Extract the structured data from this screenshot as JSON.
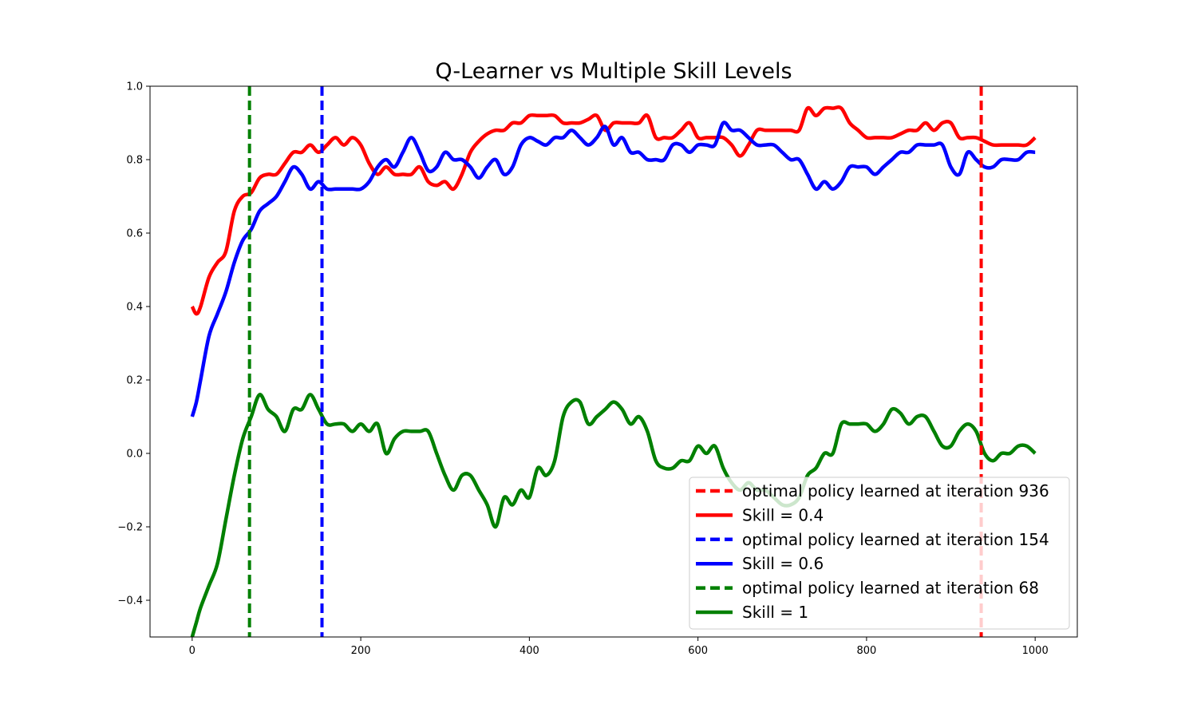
{
  "chart_data": {
    "type": "line",
    "title": "Q-Learner vs Multiple Skill Levels",
    "xlabel": "",
    "ylabel": "",
    "xlim": [
      -50,
      1050
    ],
    "ylim": [
      -0.5,
      1.0
    ],
    "xticks": [
      0,
      200,
      400,
      600,
      800,
      1000
    ],
    "xtick_labels": [
      "0",
      "200",
      "400",
      "600",
      "800",
      "1000"
    ],
    "yticks": [
      -0.4,
      -0.2,
      0.0,
      0.2,
      0.4,
      0.6,
      0.8,
      1.0
    ],
    "ytick_labels": [
      "−0.4",
      "−0.2",
      "0.0",
      "0.2",
      "0.4",
      "0.6",
      "0.8",
      "1.0"
    ],
    "grid": false,
    "legend_position": "lower-right",
    "legend": [
      {
        "label": "optimal policy learned at iteration 936",
        "color": "#ff0000",
        "style": "dashed"
      },
      {
        "label": "Skill = 0.4",
        "color": "#ff0000",
        "style": "solid"
      },
      {
        "label": "optimal policy learned at iteration 154",
        "color": "#0000ff",
        "style": "dashed"
      },
      {
        "label": "Skill = 0.6",
        "color": "#0000ff",
        "style": "solid"
      },
      {
        "label": "optimal policy learned at iteration 68",
        "color": "#008000",
        "style": "dashed"
      },
      {
        "label": "Skill = 1",
        "color": "#008000",
        "style": "solid"
      }
    ],
    "vlines": [
      {
        "x": 68,
        "color": "#008000"
      },
      {
        "x": 154,
        "color": "#0000ff"
      },
      {
        "x": 936,
        "color": "#ff0000"
      }
    ],
    "series": [
      {
        "name": "Skill = 0.4",
        "color": "#ff0000",
        "x": [
          0,
          5,
          10,
          20,
          30,
          40,
          50,
          60,
          70,
          80,
          90,
          100,
          110,
          120,
          130,
          140,
          150,
          160,
          170,
          180,
          190,
          200,
          210,
          220,
          230,
          240,
          250,
          260,
          270,
          280,
          290,
          300,
          310,
          320,
          330,
          340,
          350,
          360,
          370,
          380,
          390,
          400,
          410,
          420,
          430,
          440,
          450,
          460,
          470,
          480,
          490,
          500,
          510,
          520,
          530,
          540,
          550,
          560,
          570,
          580,
          590,
          600,
          610,
          620,
          630,
          640,
          650,
          660,
          670,
          680,
          690,
          700,
          710,
          720,
          730,
          740,
          750,
          760,
          770,
          780,
          790,
          800,
          810,
          820,
          830,
          840,
          850,
          860,
          870,
          880,
          890,
          900,
          910,
          920,
          930,
          940,
          950,
          960,
          970,
          980,
          990,
          1000
        ],
        "values": [
          0.4,
          0.38,
          0.4,
          0.48,
          0.52,
          0.55,
          0.66,
          0.7,
          0.71,
          0.75,
          0.76,
          0.76,
          0.79,
          0.82,
          0.82,
          0.84,
          0.82,
          0.84,
          0.86,
          0.84,
          0.86,
          0.84,
          0.79,
          0.76,
          0.78,
          0.76,
          0.76,
          0.76,
          0.78,
          0.74,
          0.73,
          0.74,
          0.72,
          0.76,
          0.82,
          0.85,
          0.87,
          0.88,
          0.88,
          0.9,
          0.9,
          0.92,
          0.92,
          0.92,
          0.92,
          0.9,
          0.9,
          0.9,
          0.91,
          0.92,
          0.88,
          0.9,
          0.9,
          0.9,
          0.9,
          0.92,
          0.86,
          0.86,
          0.86,
          0.88,
          0.9,
          0.86,
          0.86,
          0.86,
          0.86,
          0.84,
          0.81,
          0.84,
          0.88,
          0.88,
          0.88,
          0.88,
          0.88,
          0.88,
          0.94,
          0.92,
          0.94,
          0.94,
          0.94,
          0.9,
          0.88,
          0.86,
          0.86,
          0.86,
          0.86,
          0.87,
          0.88,
          0.88,
          0.9,
          0.88,
          0.9,
          0.9,
          0.86,
          0.86,
          0.86,
          0.85,
          0.84,
          0.84,
          0.84,
          0.84,
          0.84,
          0.86
        ]
      },
      {
        "name": "Skill = 0.6",
        "color": "#0000ff",
        "x": [
          0,
          5,
          10,
          20,
          30,
          40,
          50,
          60,
          70,
          80,
          90,
          100,
          110,
          120,
          130,
          140,
          150,
          160,
          170,
          180,
          190,
          200,
          210,
          220,
          230,
          240,
          250,
          260,
          270,
          280,
          290,
          300,
          310,
          320,
          330,
          340,
          350,
          360,
          370,
          380,
          390,
          400,
          410,
          420,
          430,
          440,
          450,
          460,
          470,
          480,
          490,
          500,
          510,
          520,
          530,
          540,
          550,
          560,
          570,
          580,
          590,
          600,
          610,
          620,
          630,
          640,
          650,
          660,
          670,
          680,
          690,
          700,
          710,
          720,
          730,
          740,
          750,
          760,
          770,
          780,
          790,
          800,
          810,
          820,
          830,
          840,
          850,
          860,
          870,
          880,
          890,
          900,
          910,
          920,
          930,
          940,
          950,
          960,
          970,
          980,
          990,
          1000
        ],
        "values": [
          0.1,
          0.14,
          0.2,
          0.32,
          0.38,
          0.44,
          0.52,
          0.58,
          0.61,
          0.66,
          0.68,
          0.7,
          0.74,
          0.78,
          0.76,
          0.72,
          0.74,
          0.72,
          0.72,
          0.72,
          0.72,
          0.72,
          0.74,
          0.78,
          0.8,
          0.78,
          0.82,
          0.86,
          0.82,
          0.77,
          0.78,
          0.82,
          0.8,
          0.8,
          0.78,
          0.75,
          0.78,
          0.8,
          0.76,
          0.78,
          0.84,
          0.86,
          0.85,
          0.84,
          0.86,
          0.86,
          0.88,
          0.86,
          0.84,
          0.86,
          0.89,
          0.84,
          0.86,
          0.82,
          0.82,
          0.8,
          0.8,
          0.8,
          0.84,
          0.84,
          0.82,
          0.84,
          0.84,
          0.84,
          0.9,
          0.88,
          0.88,
          0.86,
          0.84,
          0.84,
          0.84,
          0.82,
          0.8,
          0.8,
          0.76,
          0.72,
          0.74,
          0.72,
          0.74,
          0.78,
          0.78,
          0.78,
          0.76,
          0.78,
          0.8,
          0.82,
          0.82,
          0.84,
          0.84,
          0.84,
          0.84,
          0.78,
          0.76,
          0.82,
          0.8,
          0.78,
          0.78,
          0.8,
          0.8,
          0.8,
          0.82,
          0.82
        ]
      },
      {
        "name": "Skill = 1",
        "color": "#008000",
        "x": [
          0,
          5,
          10,
          20,
          30,
          40,
          50,
          60,
          70,
          80,
          90,
          100,
          110,
          120,
          130,
          140,
          150,
          160,
          170,
          180,
          190,
          200,
          210,
          220,
          230,
          240,
          250,
          260,
          270,
          280,
          290,
          300,
          310,
          320,
          330,
          340,
          350,
          360,
          370,
          380,
          390,
          400,
          410,
          420,
          430,
          440,
          450,
          460,
          470,
          480,
          490,
          500,
          510,
          520,
          530,
          540,
          550,
          560,
          570,
          580,
          590,
          600,
          610,
          620,
          630,
          640,
          650,
          660,
          670,
          680,
          690,
          700,
          710,
          720,
          730,
          740,
          750,
          760,
          770,
          780,
          790,
          800,
          810,
          820,
          830,
          840,
          850,
          860,
          870,
          880,
          890,
          900,
          910,
          920,
          930,
          940,
          950,
          960,
          970,
          980,
          990,
          1000
        ],
        "values": [
          -0.5,
          -0.46,
          -0.42,
          -0.36,
          -0.3,
          -0.18,
          -0.06,
          0.04,
          0.1,
          0.16,
          0.12,
          0.1,
          0.06,
          0.12,
          0.12,
          0.16,
          0.12,
          0.08,
          0.08,
          0.08,
          0.06,
          0.08,
          0.06,
          0.08,
          0.0,
          0.04,
          0.06,
          0.06,
          0.06,
          0.06,
          0.0,
          -0.06,
          -0.1,
          -0.06,
          -0.06,
          -0.1,
          -0.14,
          -0.2,
          -0.12,
          -0.14,
          -0.1,
          -0.12,
          -0.04,
          -0.06,
          -0.02,
          0.1,
          0.14,
          0.14,
          0.08,
          0.1,
          0.12,
          0.14,
          0.12,
          0.08,
          0.1,
          0.06,
          -0.02,
          -0.04,
          -0.04,
          -0.02,
          -0.02,
          0.02,
          0.0,
          0.02,
          -0.04,
          -0.08,
          -0.1,
          -0.08,
          -0.1,
          -0.1,
          -0.12,
          -0.14,
          -0.14,
          -0.12,
          -0.06,
          -0.04,
          0.0,
          0.0,
          0.08,
          0.08,
          0.08,
          0.08,
          0.06,
          0.08,
          0.12,
          0.11,
          0.08,
          0.1,
          0.1,
          0.06,
          0.02,
          0.02,
          0.06,
          0.08,
          0.06,
          0.0,
          -0.02,
          0.0,
          0.0,
          0.02,
          0.02,
          0.0
        ]
      }
    ]
  }
}
